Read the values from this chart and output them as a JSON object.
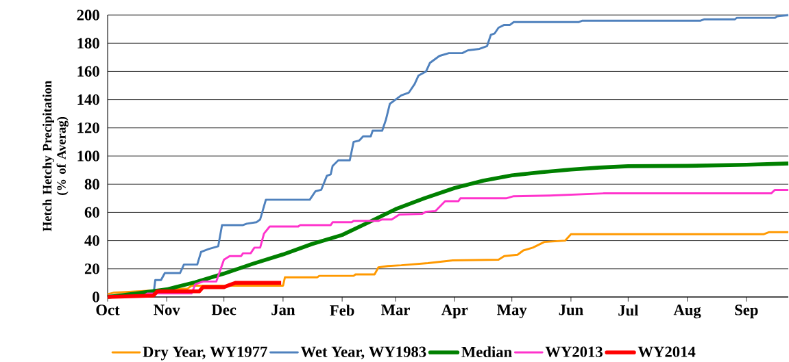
{
  "chart_data": {
    "type": "line",
    "ylabel": "Hetch Hetchy Precipitation (% of Averag)",
    "xlim": [
      "2013-10-01",
      "2014-09-23"
    ],
    "ylim": [
      0,
      200
    ],
    "xticks": [
      {
        "value": "2013-10-01",
        "label": "Oct"
      },
      {
        "value": "2013-11-01",
        "label": "Nov"
      },
      {
        "value": "2013-12-01",
        "label": "Dec"
      },
      {
        "value": "2014-01-01",
        "label": "Jan"
      },
      {
        "value": "2014-02-01",
        "label": "Feb"
      },
      {
        "value": "2014-03-01",
        "label": "Mar"
      },
      {
        "value": "2014-04-01",
        "label": "Apr"
      },
      {
        "value": "2014-05-01",
        "label": "May"
      },
      {
        "value": "2014-06-01",
        "label": "Jun"
      },
      {
        "value": "2014-07-01",
        "label": "Jul"
      },
      {
        "value": "2014-08-01",
        "label": "Aug"
      },
      {
        "value": "2014-09-01",
        "label": "Sep"
      }
    ],
    "yticks": [
      0,
      20,
      40,
      60,
      80,
      100,
      120,
      140,
      160,
      180,
      200
    ],
    "grid": "y",
    "legend": "bottom",
    "marker": "none",
    "line_style": "solid",
    "series": [
      {
        "name": "Dry Year, WY1977",
        "color": "#ff9900",
        "x": [
          "2013-10-01",
          "2013-10-04",
          "2013-11-11",
          "2013-11-12",
          "2013-11-14",
          "2014-01-01",
          "2014-01-02",
          "2014-01-19",
          "2014-01-20",
          "2014-02-07",
          "2014-02-08",
          "2014-02-18",
          "2014-02-20",
          "2014-02-25",
          "2014-03-04",
          "2014-03-18",
          "2014-03-31",
          "2014-04-24",
          "2014-04-27",
          "2014-05-04",
          "2014-05-07",
          "2014-05-12",
          "2014-05-18",
          "2014-05-29",
          "2014-06-01",
          "2014-09-10",
          "2014-09-13",
          "2014-09-23"
        ],
        "values": [
          2,
          3,
          null,
          6,
          8,
          8,
          14,
          14,
          15,
          15,
          16,
          16,
          21,
          22,
          22.5,
          24,
          26,
          26.5,
          29,
          30,
          33,
          35,
          39,
          40,
          44.5,
          44.5,
          46,
          46
        ]
      },
      {
        "name": "Wet Year, WY1983",
        "color": "#4f81bd",
        "x": [
          "2013-10-01",
          "2013-10-25",
          "2013-10-26",
          "2013-10-29",
          "2013-10-31",
          "2013-11-08",
          "2013-11-10",
          "2013-11-17",
          "2013-11-19",
          "2013-11-23",
          "2013-11-28",
          "2013-11-30",
          "2013-12-11",
          "2013-12-13",
          "2013-12-18",
          "2013-12-20",
          "2013-12-23",
          "2014-01-15",
          "2014-01-18",
          "2014-01-21",
          "2014-01-24",
          "2014-01-26",
          "2014-01-27",
          "2014-01-30",
          "2014-02-05",
          "2014-02-07",
          "2014-02-10",
          "2014-02-12",
          "2014-02-16",
          "2014-02-17",
          "2014-02-22",
          "2014-02-24",
          "2014-02-26",
          "2014-03-01",
          "2014-03-04",
          "2014-03-08",
          "2014-03-11",
          "2014-03-13",
          "2014-03-17",
          "2014-03-19",
          "2014-03-24",
          "2014-03-29",
          "2014-04-05",
          "2014-04-08",
          "2014-04-14",
          "2014-04-18",
          "2014-04-20",
          "2014-04-22",
          "2014-04-24",
          "2014-04-27",
          "2014-04-30",
          "2014-05-02",
          "2014-06-05",
          "2014-06-07",
          "2014-08-08",
          "2014-08-10",
          "2014-08-26",
          "2014-08-27",
          "2014-09-16",
          "2014-09-17",
          "2014-09-23"
        ],
        "values": [
          1,
          1,
          12,
          12,
          17,
          17,
          23,
          23,
          32,
          34,
          36,
          51,
          51,
          52,
          53,
          55,
          69,
          69,
          75,
          76,
          86,
          87,
          93,
          97,
          97,
          110,
          111,
          114,
          114,
          118,
          118,
          126,
          137,
          140,
          143,
          145,
          151,
          157,
          160,
          166,
          171,
          173,
          173,
          175,
          176,
          178,
          186,
          187,
          191,
          193,
          193,
          195,
          195,
          196,
          196,
          197,
          197,
          198,
          198,
          199,
          200
        ]
      },
      {
        "name": "Median",
        "color": "#008000",
        "x": [
          "2013-10-01",
          "2013-10-16",
          "2013-11-01",
          "2013-11-16",
          "2013-12-01",
          "2013-12-16",
          "2014-01-01",
          "2014-01-16",
          "2014-02-01",
          "2014-02-15",
          "2014-03-01",
          "2014-03-16",
          "2014-04-01",
          "2014-04-16",
          "2014-05-01",
          "2014-05-16",
          "2014-06-01",
          "2014-06-16",
          "2014-07-01",
          "2014-08-01",
          "2014-09-01",
          "2014-09-23"
        ],
        "values": [
          0,
          2.5,
          5.4,
          10.5,
          16.6,
          23.5,
          30.2,
          37.5,
          44,
          53,
          62.3,
          70,
          77.3,
          82.5,
          86.3,
          88.5,
          90.4,
          91.8,
          92.8,
          93,
          93.8,
          94.7
        ]
      },
      {
        "name": "WY2013",
        "color": "#ff33cc",
        "x": [
          "2013-10-01",
          "2013-10-20",
          "2013-10-22",
          "2013-11-14",
          "2013-11-16",
          "2013-11-20",
          "2013-11-27",
          "2013-12-01",
          "2013-12-04",
          "2013-12-10",
          "2013-12-11",
          "2013-12-15",
          "2013-12-17",
          "2013-12-20",
          "2013-12-22",
          "2013-12-25",
          "2014-01-09",
          "2014-01-10",
          "2014-01-26",
          "2014-01-27",
          "2014-02-06",
          "2014-02-07",
          "2014-02-20",
          "2014-02-22",
          "2014-02-27",
          "2014-03-03",
          "2014-03-15",
          "2014-03-17",
          "2014-03-22",
          "2014-03-27",
          "2014-04-03",
          "2014-04-04",
          "2014-04-28",
          "2014-05-02",
          "2014-05-21",
          "2014-06-18",
          "2014-09-14",
          "2014-09-16",
          "2014-09-23"
        ],
        "values": [
          0,
          1,
          2.5,
          2.5,
          9,
          11,
          11,
          26.5,
          29,
          29,
          31,
          31,
          35,
          35,
          45,
          50,
          50,
          51,
          51,
          53,
          53,
          54,
          54,
          55,
          55,
          58.5,
          59,
          60.5,
          61,
          68,
          68,
          70,
          70,
          71.5,
          72,
          73.5,
          73.5,
          76,
          76
        ]
      },
      {
        "name": "WY2014",
        "color": "#ff0000",
        "x": [
          "2013-10-01",
          "2013-10-25",
          "2013-10-27",
          "2013-11-18",
          "2013-11-20",
          "2013-12-01",
          "2013-12-04",
          "2013-12-07",
          "2013-12-31"
        ],
        "values": [
          0,
          1,
          4,
          4,
          7,
          7,
          8.5,
          10,
          10
        ]
      }
    ]
  }
}
